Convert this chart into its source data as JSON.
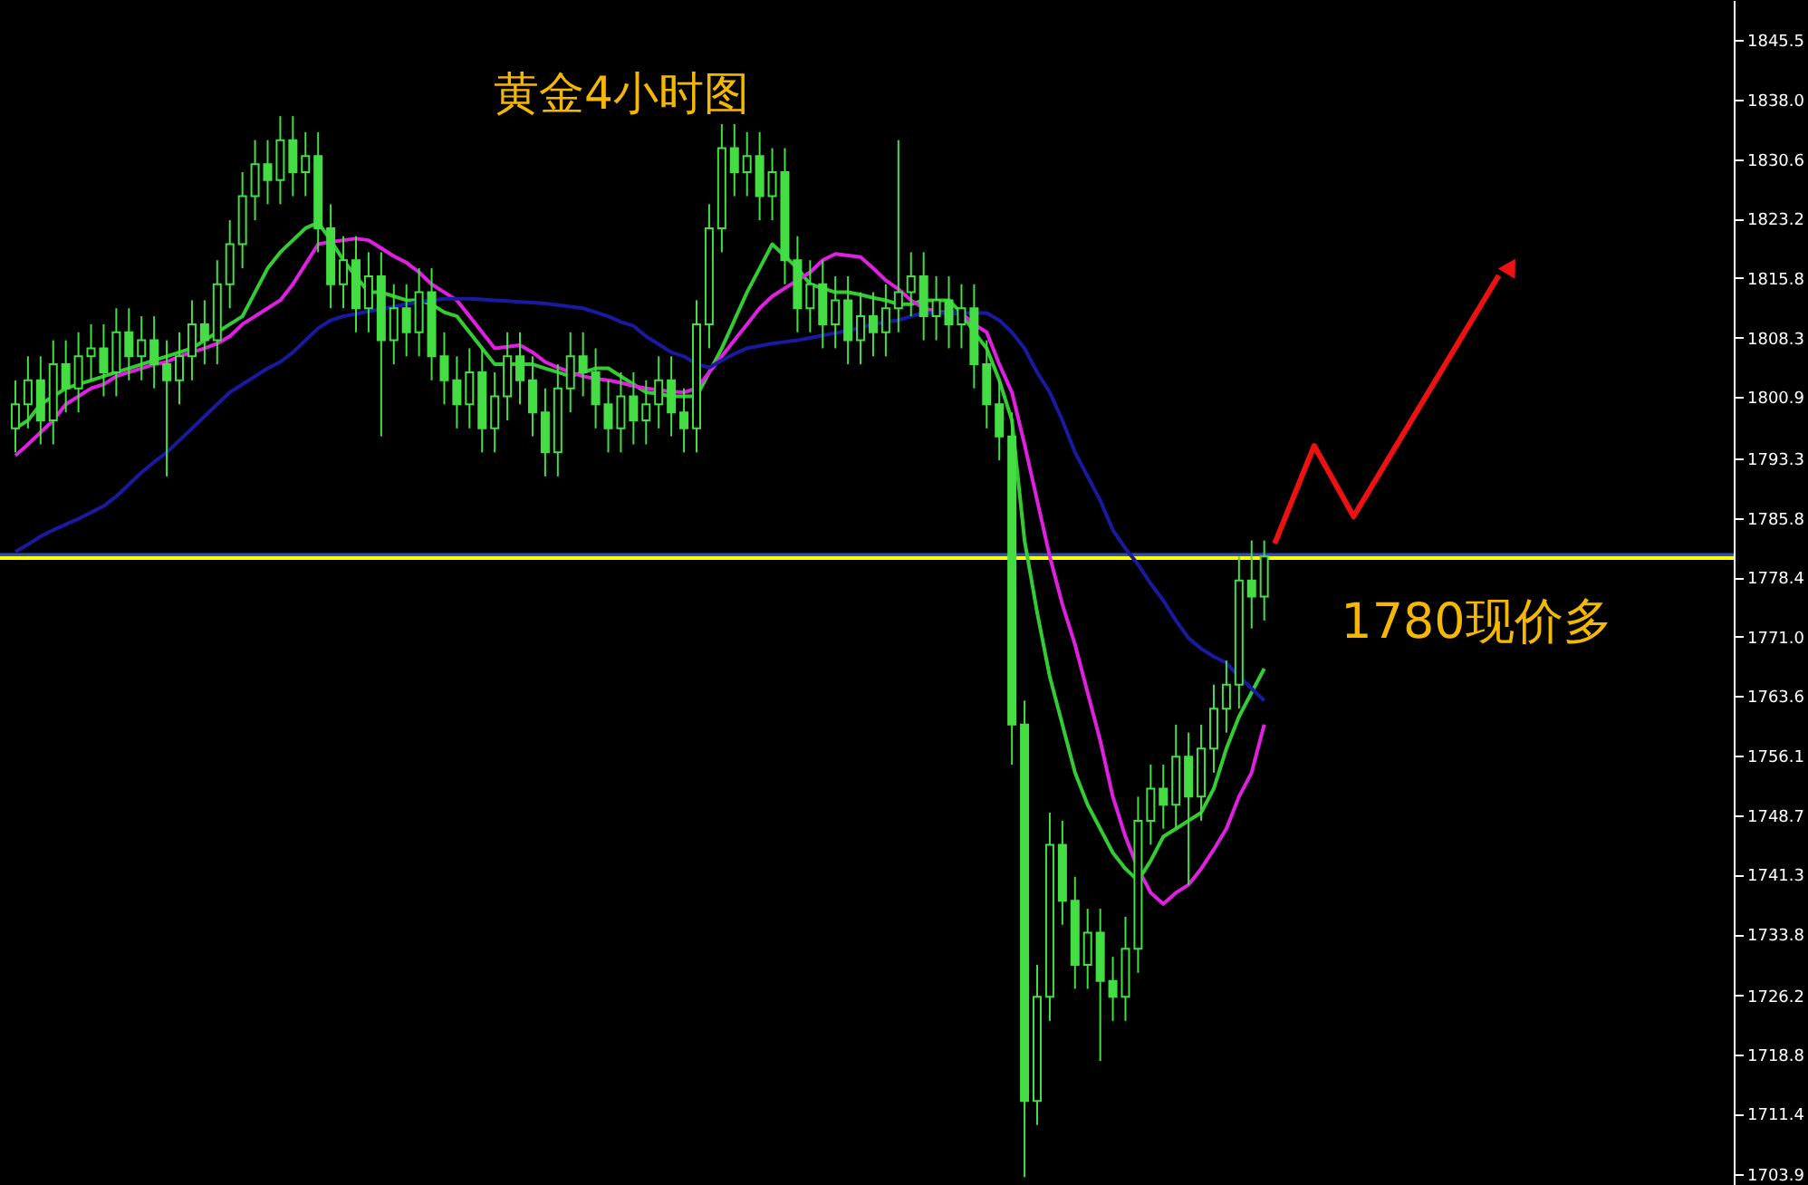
{
  "chart_data": {
    "type": "candlestick",
    "title": "黄金4小时图",
    "annotations": [
      "1780现价多"
    ],
    "categories": [
      null,
      null,
      null,
      null,
      null,
      null,
      null,
      null,
      null,
      null,
      null,
      null,
      null,
      null,
      null,
      null,
      null,
      null,
      null,
      null,
      null,
      null,
      null,
      null,
      null,
      null,
      null,
      null,
      null,
      null,
      null,
      null,
      null,
      null,
      null,
      null,
      null,
      null,
      null,
      null,
      null,
      null,
      null,
      null,
      null,
      null,
      null,
      null,
      null,
      null,
      null,
      null,
      null,
      null,
      null,
      null,
      null,
      null,
      null,
      null,
      null,
      null,
      null,
      null,
      null,
      null,
      null,
      null,
      null,
      null,
      null,
      null,
      null,
      null,
      null,
      null,
      null,
      null,
      null,
      null,
      null,
      null,
      null,
      null,
      null,
      null,
      null,
      null,
      null,
      null,
      null,
      null,
      null,
      null,
      null,
      null,
      null,
      null,
      null,
      null,
      null,
      null,
      null,
      null,
      null,
      null,
      null,
      null,
      null,
      null,
      null,
      null,
      null,
      null,
      null,
      null,
      null,
      null,
      null,
      null,
      null,
      null,
      null,
      null,
      null,
      null,
      null,
      null,
      null,
      null,
      null,
      null,
      null,
      null,
      null,
      null
    ],
    "color": "#44dd44",
    "ohlc": [
      [
        1797,
        1803,
        1794,
        1800
      ],
      [
        1800,
        1806,
        1797,
        1803
      ],
      [
        1803,
        1806,
        1795,
        1798
      ],
      [
        1798,
        1808,
        1795,
        1805
      ],
      [
        1805,
        1808,
        1799,
        1802
      ],
      [
        1802,
        1809,
        1799,
        1806
      ],
      [
        1806,
        1810,
        1803,
        1807
      ],
      [
        1807,
        1810,
        1801,
        1804
      ],
      [
        1804,
        1812,
        1801,
        1809
      ],
      [
        1809,
        1812,
        1803,
        1806
      ],
      [
        1806,
        1811,
        1803,
        1808
      ],
      [
        1808,
        1811,
        1802,
        1805
      ],
      [
        1805,
        1808,
        1791,
        1803
      ],
      [
        1803,
        1809,
        1800,
        1806
      ],
      [
        1806,
        1813,
        1803,
        1810
      ],
      [
        1810,
        1813,
        1805,
        1808
      ],
      [
        1808,
        1818,
        1805,
        1815
      ],
      [
        1815,
        1823,
        1812,
        1820
      ],
      [
        1820,
        1829,
        1817,
        1826
      ],
      [
        1826,
        1833,
        1823,
        1830
      ],
      [
        1830,
        1833,
        1825,
        1828
      ],
      [
        1828,
        1836,
        1825,
        1833
      ],
      [
        1833,
        1836,
        1826,
        1829
      ],
      [
        1829,
        1834,
        1826,
        1831
      ],
      [
        1831,
        1834,
        1819,
        1822
      ],
      [
        1822,
        1825,
        1812,
        1815
      ],
      [
        1815,
        1821,
        1812,
        1818
      ],
      [
        1818,
        1821,
        1809,
        1812
      ],
      [
        1812,
        1819,
        1809,
        1816
      ],
      [
        1816,
        1819,
        1796,
        1808
      ],
      [
        1808,
        1815,
        1805,
        1812
      ],
      [
        1812,
        1815,
        1806,
        1809
      ],
      [
        1809,
        1817,
        1806,
        1814
      ],
      [
        1814,
        1817,
        1803,
        1806
      ],
      [
        1806,
        1809,
        1800,
        1803
      ],
      [
        1803,
        1806,
        1797,
        1800
      ],
      [
        1800,
        1807,
        1797,
        1804
      ],
      [
        1804,
        1807,
        1794,
        1797
      ],
      [
        1797,
        1804,
        1794,
        1801
      ],
      [
        1801,
        1809,
        1798,
        1806
      ],
      [
        1806,
        1809,
        1800,
        1803
      ],
      [
        1803,
        1806,
        1796,
        1799
      ],
      [
        1799,
        1802,
        1791,
        1794
      ],
      [
        1794,
        1805,
        1791,
        1802
      ],
      [
        1802,
        1809,
        1799,
        1806
      ],
      [
        1806,
        1809,
        1801,
        1804
      ],
      [
        1804,
        1807,
        1797,
        1800
      ],
      [
        1800,
        1803,
        1794,
        1797
      ],
      [
        1797,
        1804,
        1794,
        1801
      ],
      [
        1801,
        1804,
        1795,
        1798
      ],
      [
        1798,
        1803,
        1795,
        1800
      ],
      [
        1800,
        1806,
        1797,
        1803
      ],
      [
        1803,
        1806,
        1796,
        1799
      ],
      [
        1799,
        1802,
        1794,
        1797
      ],
      [
        1797,
        1813,
        1794,
        1810
      ],
      [
        1810,
        1825,
        1807,
        1822
      ],
      [
        1822,
        1835,
        1819,
        1832
      ],
      [
        1832,
        1835,
        1826,
        1829
      ],
      [
        1829,
        1834,
        1826,
        1831
      ],
      [
        1831,
        1834,
        1823,
        1826
      ],
      [
        1826,
        1832,
        1823,
        1829
      ],
      [
        1829,
        1832,
        1815,
        1818
      ],
      [
        1818,
        1821,
        1809,
        1812
      ],
      [
        1812,
        1818,
        1809,
        1815
      ],
      [
        1815,
        1818,
        1807,
        1810
      ],
      [
        1810,
        1816,
        1807,
        1813
      ],
      [
        1813,
        1816,
        1805,
        1808
      ],
      [
        1808,
        1814,
        1805,
        1811
      ],
      [
        1811,
        1814,
        1806,
        1809
      ],
      [
        1809,
        1815,
        1806,
        1812
      ],
      [
        1812,
        1833,
        1809,
        1814
      ],
      [
        1814,
        1819,
        1811,
        1816
      ],
      [
        1816,
        1819,
        1808,
        1811
      ],
      [
        1811,
        1816,
        1808,
        1813
      ],
      [
        1813,
        1816,
        1807,
        1810
      ],
      [
        1810,
        1815,
        1807,
        1812
      ],
      [
        1812,
        1815,
        1802,
        1805
      ],
      [
        1805,
        1808,
        1797,
        1800
      ],
      [
        1800,
        1803,
        1793,
        1796
      ],
      [
        1796,
        1799,
        1755,
        1760
      ],
      [
        1760,
        1763,
        1703.5,
        1713
      ],
      [
        1713,
        1730,
        1710,
        1726
      ],
      [
        1726,
        1749,
        1723,
        1745
      ],
      [
        1745,
        1748,
        1735,
        1738
      ],
      [
        1738,
        1741,
        1727,
        1730
      ],
      [
        1730,
        1737,
        1727,
        1734
      ],
      [
        1734,
        1737,
        1718,
        1728
      ],
      [
        1728,
        1731,
        1723,
        1726
      ],
      [
        1726,
        1736,
        1723,
        1732
      ],
      [
        1732,
        1751,
        1729,
        1748
      ],
      [
        1748,
        1755,
        1745,
        1752
      ],
      [
        1752,
        1755,
        1747,
        1750
      ],
      [
        1750,
        1760,
        1747,
        1756
      ],
      [
        1756,
        1759,
        1740,
        1751
      ],
      [
        1751,
        1760,
        1748,
        1757
      ],
      [
        1757,
        1765,
        1754,
        1762
      ],
      [
        1762,
        1768,
        1759,
        1765
      ],
      [
        1765,
        1781,
        1762,
        1778
      ],
      [
        1778,
        1783,
        1772,
        1776
      ],
      [
        1776,
        1783,
        1773,
        1781
      ],
      null,
      null,
      null,
      null,
      null,
      null,
      null,
      null,
      null,
      null,
      null,
      null,
      null,
      null,
      null,
      null,
      null,
      null,
      null,
      null,
      null,
      null,
      null,
      null,
      null,
      null,
      null,
      null,
      null,
      null,
      null,
      null,
      null,
      null,
      null,
      null
    ],
    "series": [
      {
        "type": "line",
        "color": "#33cc33",
        "values": [
          1797,
          1798,
          1800,
          1801,
          1802,
          1802.5,
          1803,
          1803.5,
          1804,
          1804.5,
          1805,
          1805.5,
          1806,
          1806.5,
          1807,
          1808,
          1809,
          1810,
          1811,
          1814,
          1817,
          1819,
          1820.5,
          1822,
          1822.7,
          1820.5,
          1818,
          1816,
          1814,
          1814,
          1813.5,
          1813,
          1813,
          1812.5,
          1811.5,
          1811,
          1809,
          1807,
          1805,
          1805,
          1805,
          1805,
          1804.5,
          1804,
          1803.5,
          1804,
          1804.5,
          1804.5,
          1803.5,
          1802.5,
          1801.5,
          1801.3,
          1801,
          1801,
          1801,
          1804,
          1807,
          1810.5,
          1814,
          1817,
          1820,
          1818.5,
          1817,
          1815,
          1814.5,
          1814,
          1814,
          1813.7,
          1813.3,
          1813,
          1812.5,
          1812.5,
          1813,
          1813,
          1813,
          1811.4,
          1809,
          1807,
          1803,
          1798,
          1783,
          1774,
          1766,
          1760,
          1754,
          1750,
          1747,
          1744,
          1742,
          1740.5,
          1743,
          1746,
          1747,
          1748,
          1749,
          1752,
          1757,
          1761,
          1764,
          1767,
          null,
          null,
          null,
          null,
          null,
          null,
          null,
          null,
          null,
          null,
          null,
          null,
          null,
          null,
          null,
          null,
          null,
          null,
          null,
          null,
          null,
          null,
          null,
          null,
          null,
          null,
          null,
          null,
          null,
          null,
          null,
          null,
          null,
          null,
          null,
          null
        ]
      },
      {
        "type": "line",
        "color": "#e020e0",
        "values": [
          1793.6,
          1795,
          1796.5,
          1798,
          1800,
          1801,
          1802,
          1802.5,
          1803.5,
          1804,
          1804.5,
          1805,
          1805.3,
          1806,
          1806.5,
          1807,
          1807.6,
          1808.5,
          1810,
          1811,
          1812,
          1813,
          1815,
          1817.5,
          1820,
          1820.3,
          1820.5,
          1820.7,
          1820.5,
          1819.5,
          1818.5,
          1817.7,
          1816.5,
          1815,
          1814,
          1813,
          1811,
          1809,
          1807,
          1807.2,
          1807.4,
          1806.5,
          1805.3,
          1804.6,
          1804,
          1803.5,
          1803.2,
          1803,
          1802.7,
          1802.3,
          1802,
          1801.8,
          1801.6,
          1801.5,
          1802,
          1804,
          1806,
          1808,
          1810,
          1812,
          1813.5,
          1814.5,
          1815.5,
          1816.5,
          1818,
          1818.8,
          1818.6,
          1818.4,
          1817,
          1815.5,
          1814.4,
          1813,
          1812,
          1811.6,
          1811.4,
          1811.4,
          1810,
          1809,
          1805,
          1801.5,
          1795,
          1788,
          1781,
          1775,
          1770,
          1764,
          1758,
          1751,
          1746,
          1742,
          1739,
          1737.6,
          1739,
          1740,
          1742,
          1744.4,
          1747,
          1751,
          1754,
          1760,
          null,
          null,
          null,
          null,
          null,
          null,
          null,
          null,
          null,
          null,
          null,
          null,
          null,
          null,
          null,
          null,
          null,
          null,
          null,
          null,
          null,
          null,
          null,
          null,
          null,
          null,
          null,
          null,
          null,
          null,
          null,
          null,
          null,
          null,
          null,
          null
        ]
      },
      {
        "type": "line",
        "color": "#1a1aa0",
        "values": [
          1781.6,
          1782.5,
          1783.5,
          1784.3,
          1785,
          1785.7,
          1786.5,
          1787.3,
          1788.5,
          1790,
          1791.5,
          1792.8,
          1794,
          1795.5,
          1797,
          1798.5,
          1800,
          1801.5,
          1802.5,
          1803.5,
          1804.5,
          1805.3,
          1806.5,
          1808,
          1809.5,
          1810.5,
          1811,
          1811.3,
          1811.6,
          1811.9,
          1812.2,
          1812.5,
          1812.8,
          1813,
          1813.2,
          1813.2,
          1813.2,
          1813.1,
          1813,
          1812.9,
          1812.8,
          1812.7,
          1812.6,
          1812.4,
          1812.2,
          1812,
          1811.5,
          1811,
          1810.3,
          1809.8,
          1808.5,
          1807.5,
          1806.5,
          1806,
          1805,
          1804.6,
          1805.5,
          1806.3,
          1807,
          1807.3,
          1807.6,
          1807.8,
          1808,
          1808.3,
          1808.6,
          1808.9,
          1809.2,
          1809.6,
          1810,
          1810.3,
          1810.5,
          1811,
          1811.4,
          1811.4,
          1811.4,
          1811.4,
          1811.4,
          1811.4,
          1810.5,
          1809,
          1807,
          1804,
          1801.5,
          1798,
          1794,
          1791,
          1788,
          1784.3,
          1782,
          1780,
          1777.6,
          1775.5,
          1773,
          1770.8,
          1769.5,
          1768.5,
          1767.7,
          1766,
          1764.5,
          1763,
          null,
          null,
          null,
          null,
          null,
          null,
          null,
          null,
          null,
          null,
          null,
          null,
          null,
          null,
          null,
          null,
          null,
          null,
          null,
          null,
          null,
          null,
          null,
          null,
          null,
          null,
          null,
          null,
          null,
          null,
          null,
          null,
          null,
          null,
          null,
          null
        ]
      }
    ],
    "ref_lines": [
      {
        "axis": "y",
        "value": 1781.2,
        "color": "#3050c0"
      },
      {
        "axis": "y",
        "value": 1780.8,
        "color": "#ffff00"
      }
    ],
    "ylim": [
      1702.5,
      1850.5
    ],
    "yticks": [
      1845.5,
      {
        "value": 1838,
        "label": "1838.0"
      },
      1830.6,
      1823.2,
      1815.8,
      1808.3,
      1800.9,
      1793.3,
      1785.8,
      1778.4,
      {
        "value": 1771,
        "label": "1771.0"
      },
      1763.6,
      1756.1,
      1748.7,
      1741.3,
      1733.8,
      1726.2,
      1718.8,
      1711.4,
      1703.9
    ],
    "tick_labels": "y",
    "grid": false
  }
}
